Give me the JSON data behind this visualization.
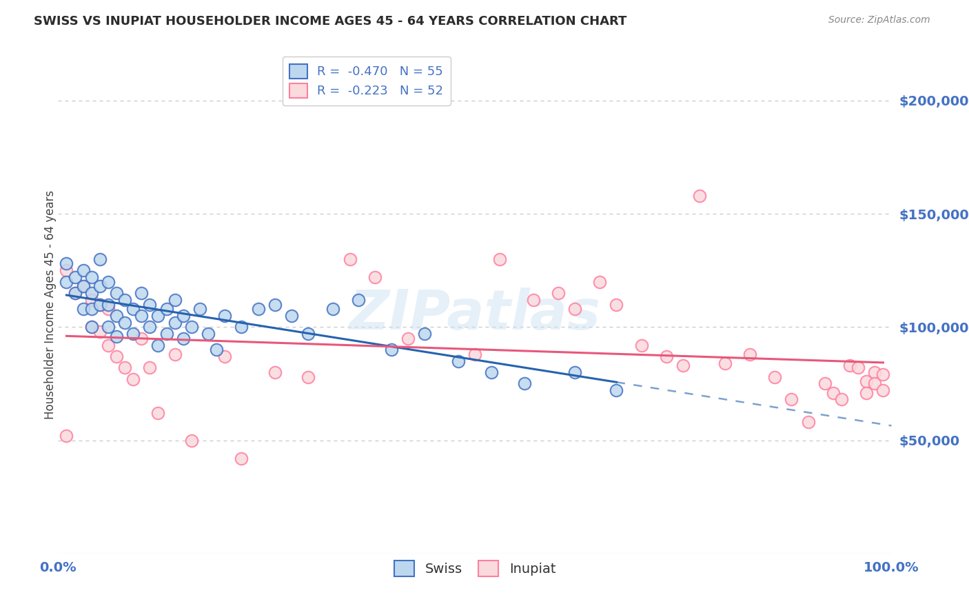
{
  "title": "SWISS VS INUPIAT HOUSEHOLDER INCOME AGES 45 - 64 YEARS CORRELATION CHART",
  "source": "Source: ZipAtlas.com",
  "ylabel": "Householder Income Ages 45 - 64 years",
  "xlim": [
    0.0,
    1.0
  ],
  "ylim": [
    0,
    220000
  ],
  "ytick_labels": [
    "",
    "$50,000",
    "$100,000",
    "$150,000",
    "$200,000"
  ],
  "xtick_labels": [
    "0.0%",
    "100.0%"
  ],
  "legend_r_swiss": "-0.470",
  "legend_n_swiss": "55",
  "legend_r_inupiat": "-0.223",
  "legend_n_inupiat": "52",
  "swiss_face_color": "#BDD7EE",
  "inupiat_face_color": "#FADADD",
  "swiss_edge_color": "#4472C4",
  "inupiat_edge_color": "#FF7F9F",
  "swiss_line_color": "#2563AE",
  "inupiat_line_color": "#E8577A",
  "grid_color": "#C8C8C8",
  "title_color": "#2c2c2c",
  "axis_label_color": "#444444",
  "tick_label_color": "#4472C4",
  "watermark": "ZIPatlas",
  "swiss_points_x": [
    0.01,
    0.01,
    0.02,
    0.02,
    0.03,
    0.03,
    0.03,
    0.04,
    0.04,
    0.04,
    0.04,
    0.05,
    0.05,
    0.05,
    0.06,
    0.06,
    0.06,
    0.07,
    0.07,
    0.07,
    0.08,
    0.08,
    0.09,
    0.09,
    0.1,
    0.1,
    0.11,
    0.11,
    0.12,
    0.12,
    0.13,
    0.13,
    0.14,
    0.14,
    0.15,
    0.15,
    0.16,
    0.17,
    0.18,
    0.19,
    0.2,
    0.22,
    0.24,
    0.26,
    0.28,
    0.3,
    0.33,
    0.36,
    0.4,
    0.44,
    0.48,
    0.52,
    0.56,
    0.62,
    0.67
  ],
  "swiss_points_y": [
    128000,
    120000,
    122000,
    115000,
    125000,
    118000,
    108000,
    122000,
    115000,
    108000,
    100000,
    130000,
    118000,
    110000,
    120000,
    110000,
    100000,
    115000,
    105000,
    96000,
    112000,
    102000,
    108000,
    97000,
    115000,
    105000,
    110000,
    100000,
    105000,
    92000,
    108000,
    97000,
    112000,
    102000,
    105000,
    95000,
    100000,
    108000,
    97000,
    90000,
    105000,
    100000,
    108000,
    110000,
    105000,
    97000,
    108000,
    112000,
    90000,
    97000,
    85000,
    80000,
    75000,
    80000,
    72000
  ],
  "inupiat_points_x": [
    0.01,
    0.01,
    0.02,
    0.03,
    0.04,
    0.04,
    0.05,
    0.05,
    0.06,
    0.06,
    0.07,
    0.08,
    0.09,
    0.1,
    0.11,
    0.12,
    0.14,
    0.16,
    0.2,
    0.22,
    0.26,
    0.3,
    0.35,
    0.38,
    0.42,
    0.5,
    0.53,
    0.57,
    0.6,
    0.62,
    0.65,
    0.67,
    0.7,
    0.73,
    0.75,
    0.77,
    0.8,
    0.83,
    0.86,
    0.88,
    0.9,
    0.92,
    0.93,
    0.94,
    0.95,
    0.96,
    0.97,
    0.97,
    0.98,
    0.98,
    0.99,
    0.99
  ],
  "inupiat_points_y": [
    125000,
    52000,
    115000,
    118000,
    112000,
    100000,
    110000,
    98000,
    108000,
    92000,
    87000,
    82000,
    77000,
    95000,
    82000,
    62000,
    88000,
    50000,
    87000,
    42000,
    80000,
    78000,
    130000,
    122000,
    95000,
    88000,
    130000,
    112000,
    115000,
    108000,
    120000,
    110000,
    92000,
    87000,
    83000,
    158000,
    84000,
    88000,
    78000,
    68000,
    58000,
    75000,
    71000,
    68000,
    83000,
    82000,
    76000,
    71000,
    80000,
    75000,
    79000,
    72000
  ]
}
